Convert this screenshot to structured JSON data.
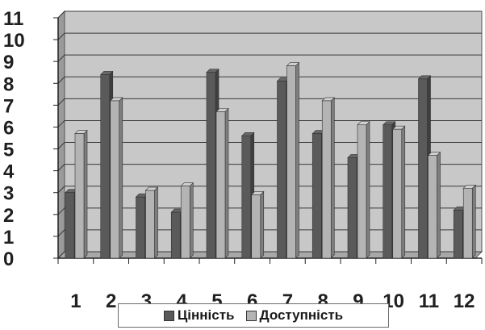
{
  "chart_data": {
    "type": "bar",
    "title": "",
    "xlabel": "",
    "ylabel": "",
    "categories": [
      "1",
      "2",
      "3",
      "4",
      "5",
      "6",
      "7",
      "8",
      "9",
      "10",
      "11",
      "12"
    ],
    "series": [
      {
        "name": "Цінність",
        "color": "#5a5a5a",
        "values": [
          3.0,
          8.4,
          2.8,
          2.1,
          8.5,
          5.6,
          8.1,
          5.7,
          4.6,
          6.1,
          8.2,
          2.2
        ]
      },
      {
        "name": "Доступність",
        "color": "#b4b4b4",
        "values": [
          5.7,
          7.2,
          3.1,
          3.3,
          6.7,
          2.9,
          8.8,
          7.2,
          6.1,
          5.9,
          4.7,
          3.2
        ]
      }
    ],
    "yticks": [
      "0",
      "1",
      "2",
      "3",
      "4",
      "5",
      "6",
      "7",
      "8",
      "9",
      "10",
      "11"
    ],
    "ylim": [
      0,
      11
    ],
    "grid": true,
    "legend_position": "bottom",
    "colors": {
      "plot_background": "#c8c8c8",
      "grid": "#3a3a3a"
    }
  }
}
